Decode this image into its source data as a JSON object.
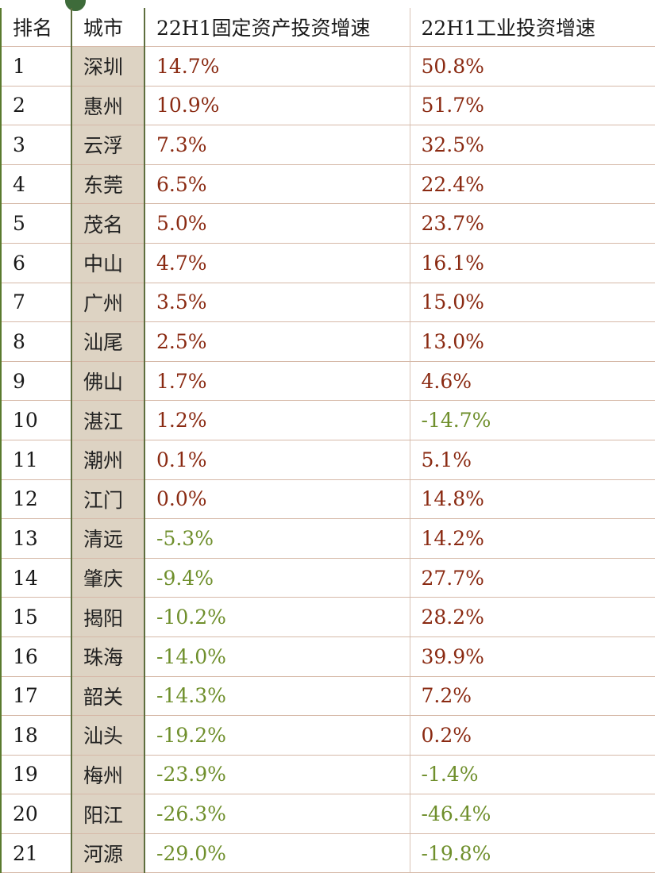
{
  "headers": {
    "rank": "排名",
    "city": "城市",
    "fixed": "22H1固定资产投资增速",
    "industrial": "22H1工业投资增速"
  },
  "rows": [
    {
      "rank": "1",
      "city": "深圳",
      "fixed": "14.7%",
      "industrial": "50.8%"
    },
    {
      "rank": "2",
      "city": "惠州",
      "fixed": "10.9%",
      "industrial": "51.7%"
    },
    {
      "rank": "3",
      "city": "云浮",
      "fixed": "7.3%",
      "industrial": "32.5%"
    },
    {
      "rank": "4",
      "city": "东莞",
      "fixed": "6.5%",
      "industrial": "22.4%"
    },
    {
      "rank": "5",
      "city": "茂名",
      "fixed": "5.0%",
      "industrial": "23.7%"
    },
    {
      "rank": "6",
      "city": "中山",
      "fixed": "4.7%",
      "industrial": "16.1%"
    },
    {
      "rank": "7",
      "city": "广州",
      "fixed": "3.5%",
      "industrial": "15.0%"
    },
    {
      "rank": "8",
      "city": "汕尾",
      "fixed": "2.5%",
      "industrial": "13.0%"
    },
    {
      "rank": "9",
      "city": "佛山",
      "fixed": "1.7%",
      "industrial": "4.6%"
    },
    {
      "rank": "10",
      "city": "湛江",
      "fixed": "1.2%",
      "industrial": "-14.7%"
    },
    {
      "rank": "11",
      "city": "潮州",
      "fixed": "0.1%",
      "industrial": "5.1%"
    },
    {
      "rank": "12",
      "city": "江门",
      "fixed": "0.0%",
      "industrial": "14.8%"
    },
    {
      "rank": "13",
      "city": "清远",
      "fixed": "-5.3%",
      "industrial": "14.2%"
    },
    {
      "rank": "14",
      "city": "肇庆",
      "fixed": "-9.4%",
      "industrial": "27.7%"
    },
    {
      "rank": "15",
      "city": "揭阳",
      "fixed": "-10.2%",
      "industrial": "28.2%"
    },
    {
      "rank": "16",
      "city": "珠海",
      "fixed": "-14.0%",
      "industrial": "39.9%"
    },
    {
      "rank": "17",
      "city": "韶关",
      "fixed": "-14.3%",
      "industrial": "7.2%"
    },
    {
      "rank": "18",
      "city": "汕头",
      "fixed": "-19.2%",
      "industrial": "0.2%"
    },
    {
      "rank": "19",
      "city": "梅州",
      "fixed": "-23.9%",
      "industrial": "-1.4%"
    },
    {
      "rank": "20",
      "city": "阳江",
      "fixed": "-26.3%",
      "industrial": "-46.4%"
    },
    {
      "rank": "21",
      "city": "河源",
      "fixed": "-29.0%",
      "industrial": "-19.8%"
    }
  ],
  "colors": {
    "positive": "#8a2a12",
    "negative": "#6f8f2c",
    "city_fill": "#ddd3c3",
    "grid": "#d6b9a8"
  }
}
